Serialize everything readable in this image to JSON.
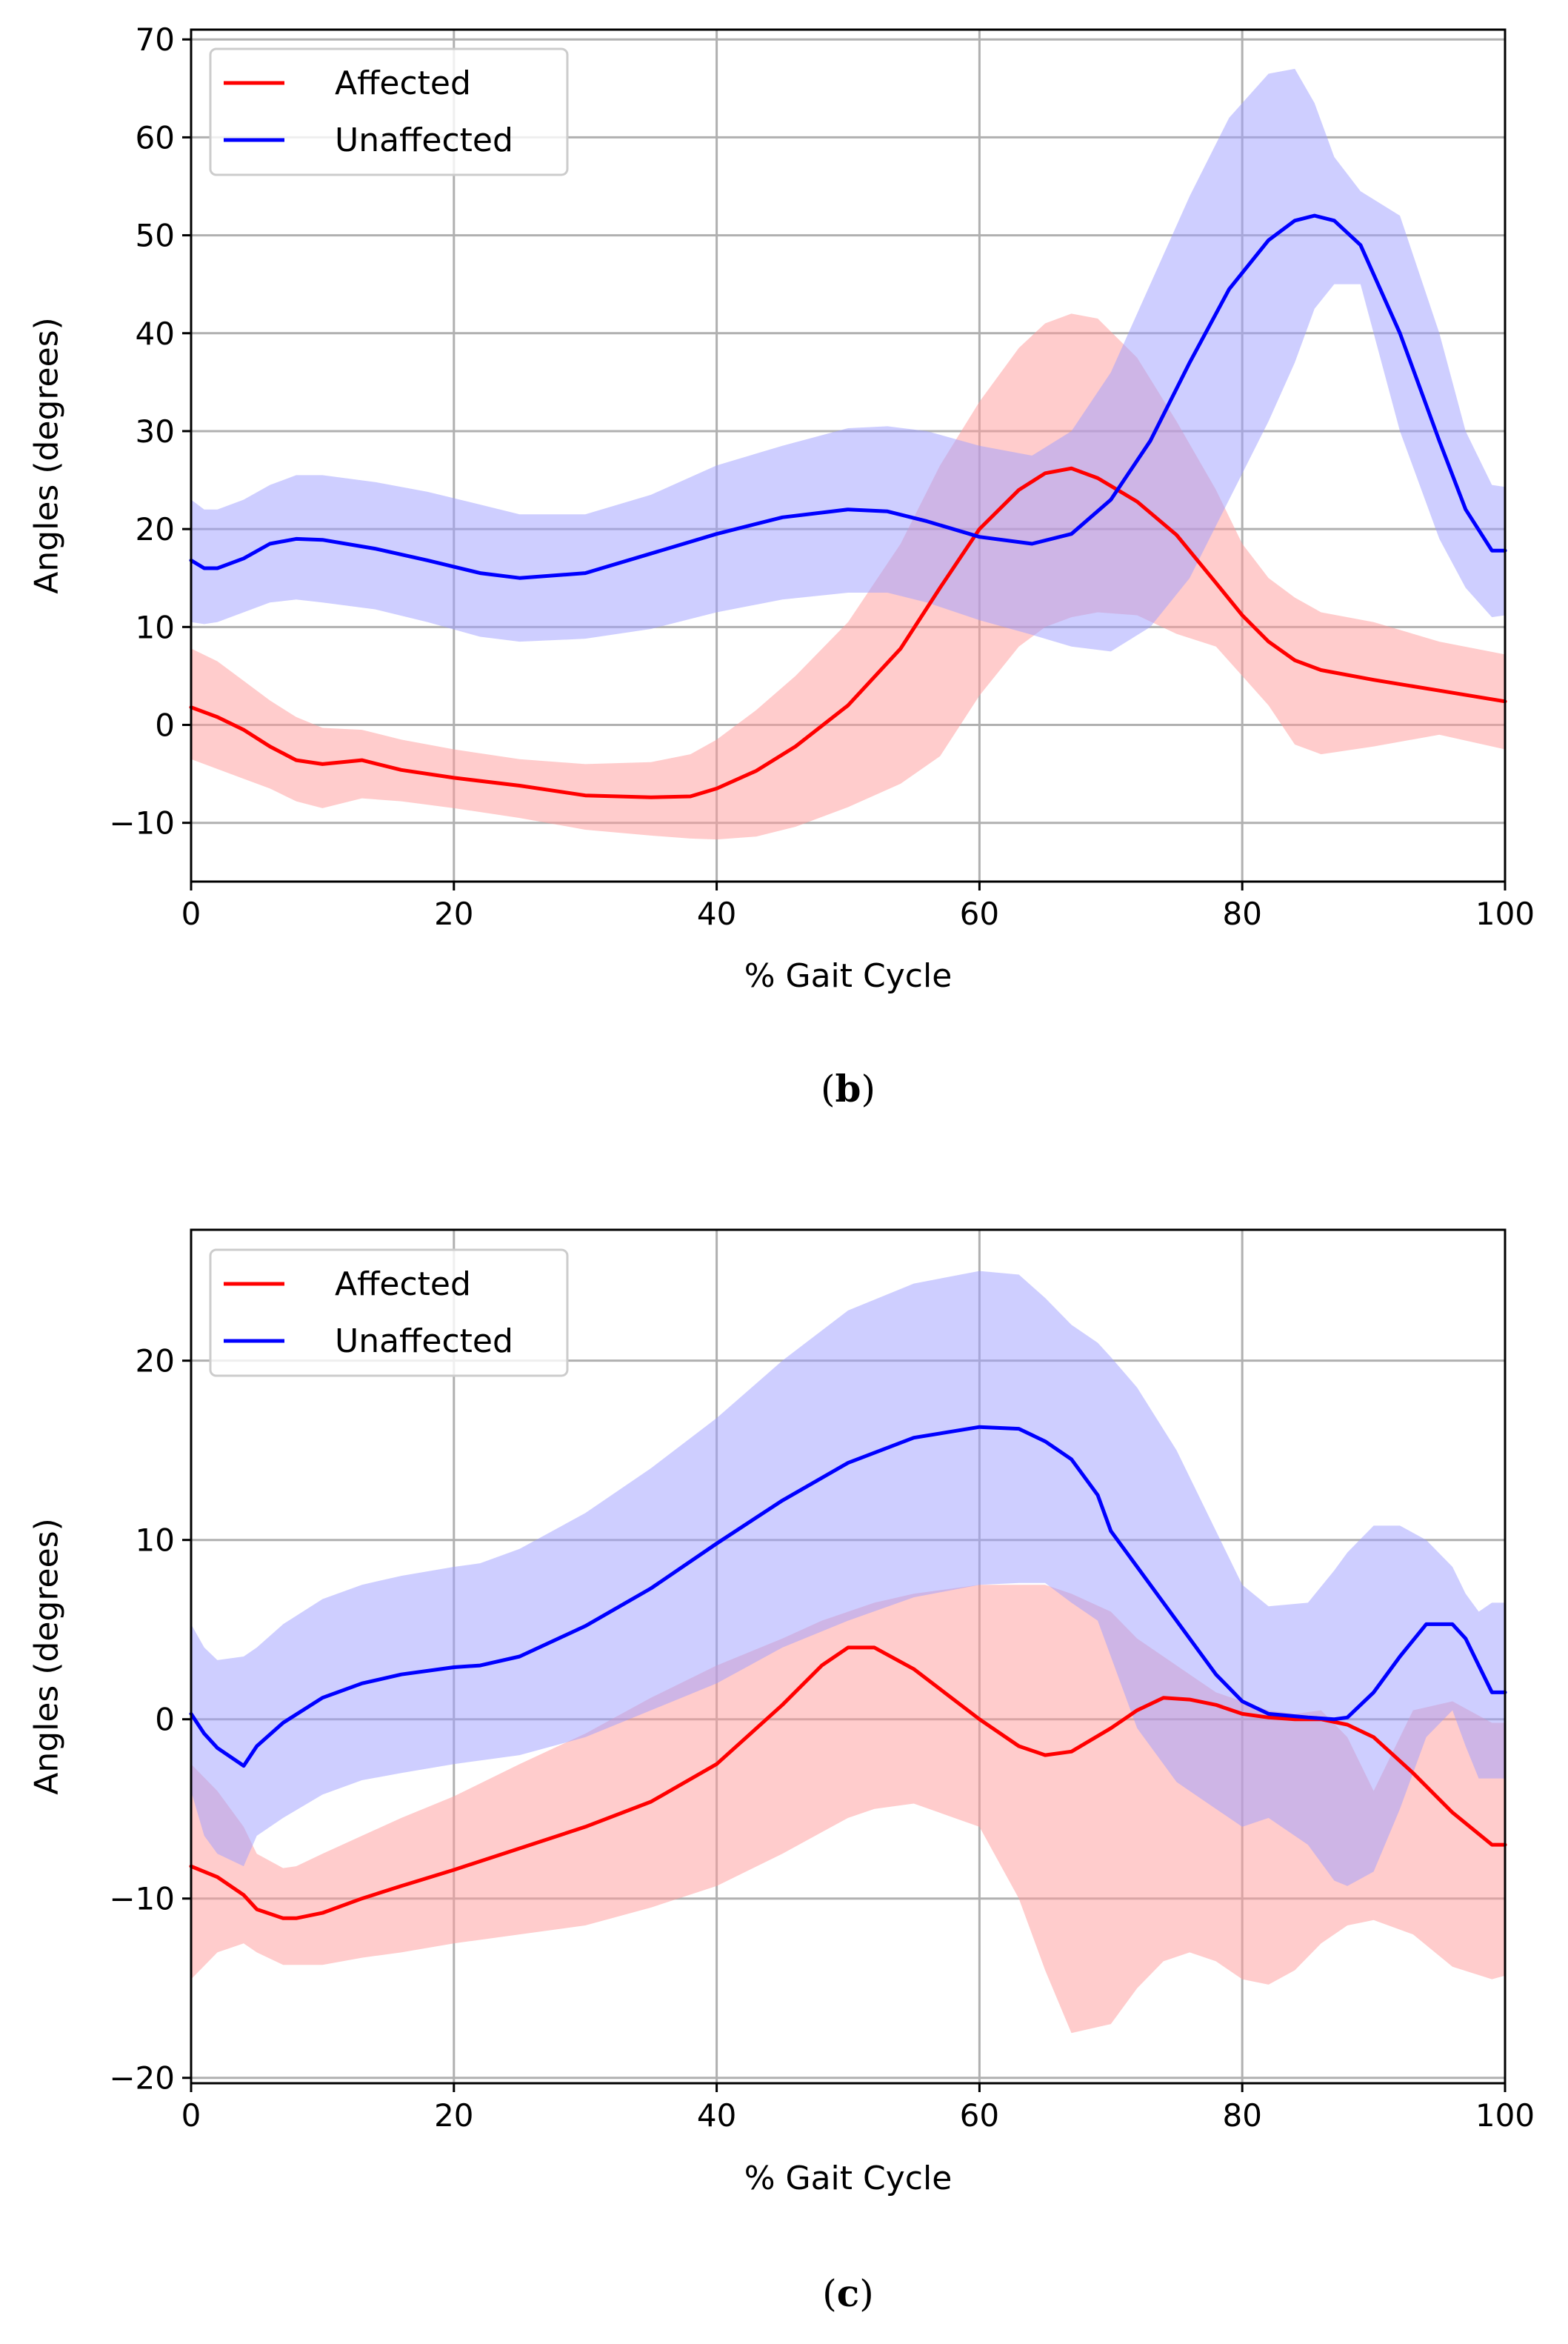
{
  "chart_data": [
    {
      "type": "line",
      "panel": "b",
      "caption": "b",
      "xlabel": "% Gait Cycle",
      "ylabel": "Angles (degrees)",
      "xlim": [
        0,
        100
      ],
      "ylim": [
        -16,
        71
      ],
      "xticks": [
        0,
        20,
        40,
        60,
        80,
        100
      ],
      "yticks": [
        -10,
        0,
        10,
        20,
        30,
        40,
        50,
        60,
        70
      ],
      "grid": true,
      "legend_position": "top-left",
      "series": [
        {
          "name": "Affected",
          "color": "#ff0000",
          "band_color": "#ff9a9a",
          "x": [
            0,
            2,
            4,
            6,
            8,
            10,
            13,
            16,
            20,
            25,
            30,
            35,
            38,
            40,
            43,
            46,
            50,
            54,
            57,
            60,
            63,
            65,
            67,
            69,
            72,
            75,
            78,
            80,
            82,
            84,
            86,
            90,
            95,
            100
          ],
          "mean": [
            1.8,
            0.8,
            -0.5,
            -2.2,
            -3.6,
            -4.0,
            -3.6,
            -4.6,
            -5.4,
            -6.2,
            -7.2,
            -7.4,
            -7.3,
            -6.5,
            -4.7,
            -2.2,
            2.0,
            7.8,
            14.0,
            20.0,
            24.0,
            25.7,
            26.2,
            25.2,
            22.8,
            19.4,
            14.5,
            11.2,
            8.5,
            6.6,
            5.6,
            4.6,
            3.5,
            2.4
          ],
          "upper": [
            7.8,
            6.5,
            4.5,
            2.5,
            0.8,
            -0.3,
            -0.5,
            -1.5,
            -2.5,
            -3.5,
            -4.0,
            -3.8,
            -3.0,
            -1.5,
            1.5,
            5.0,
            10.5,
            18.5,
            26.5,
            33.0,
            38.5,
            41.0,
            42.0,
            41.5,
            37.5,
            31.0,
            24.0,
            18.5,
            15.0,
            13.0,
            11.5,
            10.5,
            8.5,
            7.2
          ],
          "lower": [
            -3.5,
            -4.5,
            -5.5,
            -6.5,
            -7.8,
            -8.5,
            -7.5,
            -7.8,
            -8.5,
            -9.5,
            -10.7,
            -11.3,
            -11.6,
            -11.7,
            -11.4,
            -10.4,
            -8.4,
            -6.0,
            -3.2,
            3.0,
            8.0,
            10.0,
            11.0,
            11.5,
            11.2,
            9.3,
            8.0,
            5.0,
            2.0,
            -2.0,
            -3.0,
            -2.2,
            -1.0,
            -2.5
          ]
        },
        {
          "name": "Unaffected",
          "color": "#0000ff",
          "band_color": "#9e9eff",
          "x": [
            0,
            1,
            2,
            4,
            6,
            8,
            10,
            14,
            18,
            22,
            25,
            30,
            35,
            40,
            45,
            50,
            53,
            56,
            60,
            64,
            67,
            70,
            73,
            76,
            79,
            82,
            84,
            85.5,
            87,
            89,
            92,
            95,
            97,
            99,
            100
          ],
          "mean": [
            16.8,
            16.0,
            16.0,
            17.0,
            18.5,
            19.0,
            18.9,
            18.0,
            16.8,
            15.5,
            15.0,
            15.5,
            17.5,
            19.5,
            21.2,
            22.0,
            21.8,
            20.8,
            19.2,
            18.5,
            19.5,
            23.0,
            29.0,
            37.0,
            44.5,
            49.5,
            51.5,
            52.0,
            51.5,
            49.0,
            40.0,
            29.0,
            22.0,
            17.8,
            17.8
          ],
          "upper": [
            23.0,
            22.0,
            22.0,
            23.0,
            24.5,
            25.5,
            25.5,
            24.8,
            23.8,
            22.5,
            21.5,
            21.5,
            23.5,
            26.5,
            28.5,
            30.3,
            30.5,
            30.0,
            28.5,
            27.5,
            30.0,
            36.0,
            45.0,
            54.0,
            62.0,
            66.5,
            67.0,
            63.5,
            58.0,
            54.5,
            52.0,
            40.0,
            30.0,
            24.5,
            24.3
          ],
          "lower": [
            10.5,
            10.3,
            10.5,
            11.5,
            12.5,
            12.8,
            12.5,
            11.8,
            10.5,
            9.0,
            8.5,
            8.8,
            9.8,
            11.5,
            12.8,
            13.5,
            13.5,
            12.5,
            10.7,
            9.2,
            8.0,
            7.5,
            10.0,
            15.0,
            23.0,
            31.0,
            37.0,
            42.5,
            45.0,
            45.0,
            30.0,
            19.0,
            14.0,
            11.0,
            11.2
          ]
        }
      ]
    },
    {
      "type": "line",
      "panel": "c",
      "caption": "c",
      "xlabel": "% Gait Cycle",
      "ylabel": "Angles (degrees)",
      "xlim": [
        0,
        100
      ],
      "ylim": [
        -20.3,
        27.3
      ],
      "xticks": [
        0,
        20,
        40,
        60,
        80,
        100
      ],
      "yticks": [
        -20,
        -10,
        0,
        10,
        20
      ],
      "grid": true,
      "legend_position": "top-left",
      "series": [
        {
          "name": "Affected",
          "color": "#ff0000",
          "band_color": "#ff9a9a",
          "x": [
            0,
            2,
            4,
            5,
            7,
            8,
            10,
            13,
            16,
            20,
            25,
            30,
            35,
            40,
            45,
            48,
            50,
            52,
            55,
            60,
            63,
            65,
            67,
            70,
            72,
            74,
            76,
            78,
            80,
            82,
            84,
            86,
            88,
            90,
            93,
            96,
            99,
            100
          ],
          "mean": [
            -8.2,
            -8.8,
            -9.8,
            -10.6,
            -11.1,
            -11.1,
            -10.8,
            -10.0,
            -9.3,
            -8.4,
            -7.2,
            -6.0,
            -4.6,
            -2.5,
            0.8,
            3.0,
            4.0,
            4.0,
            2.8,
            0.0,
            -1.5,
            -2.0,
            -1.8,
            -0.5,
            0.5,
            1.2,
            1.1,
            0.8,
            0.3,
            0.1,
            0.0,
            0.0,
            -0.3,
            -1.0,
            -3.0,
            -5.2,
            -7.0,
            -7.0
          ],
          "upper": [
            -2.5,
            -4.0,
            -6.0,
            -7.5,
            -8.3,
            -8.2,
            -7.5,
            -6.5,
            -5.5,
            -4.3,
            -2.5,
            -0.8,
            1.2,
            3.0,
            4.5,
            5.5,
            6.0,
            6.5,
            7.0,
            7.5,
            7.5,
            7.5,
            7.0,
            6.0,
            4.5,
            3.5,
            2.5,
            1.5,
            1.0,
            0.5,
            0.3,
            0.5,
            -1.0,
            -4.0,
            0.5,
            1.0,
            -0.2,
            -0.2
          ],
          "lower": [
            -14.5,
            -13.0,
            -12.5,
            -13.0,
            -13.7,
            -13.7,
            -13.7,
            -13.3,
            -13.0,
            -12.5,
            -12.0,
            -11.5,
            -10.5,
            -9.3,
            -7.5,
            -6.3,
            -5.5,
            -5.0,
            -4.7,
            -6.0,
            -10.0,
            -14.0,
            -17.5,
            -17.0,
            -15.0,
            -13.5,
            -13.0,
            -13.5,
            -14.5,
            -14.8,
            -14.0,
            -12.5,
            -11.5,
            -11.2,
            -12.0,
            -13.8,
            -14.5,
            -14.3
          ]
        },
        {
          "name": "Unaffected",
          "color": "#0000ff",
          "band_color": "#9e9eff",
          "x": [
            0,
            1,
            2,
            4,
            5,
            7,
            10,
            13,
            16,
            20,
            22,
            25,
            30,
            35,
            40,
            45,
            50,
            55,
            60,
            63,
            65,
            67,
            69,
            70,
            72,
            75,
            78,
            80,
            82,
            85,
            87,
            88,
            90,
            92,
            94,
            96,
            97,
            98,
            99,
            100
          ],
          "mean": [
            0.3,
            -0.8,
            -1.6,
            -2.6,
            -1.5,
            -0.2,
            1.2,
            2.0,
            2.5,
            2.9,
            3.0,
            3.5,
            5.2,
            7.3,
            9.8,
            12.2,
            14.3,
            15.7,
            16.3,
            16.2,
            15.5,
            14.5,
            12.5,
            10.5,
            8.5,
            5.5,
            2.5,
            1.0,
            0.3,
            0.1,
            0.0,
            0.1,
            1.5,
            3.5,
            5.3,
            5.3,
            4.5,
            3.0,
            1.5,
            1.5
          ],
          "upper": [
            5.3,
            4.0,
            3.3,
            3.5,
            4.0,
            5.3,
            6.7,
            7.5,
            8.0,
            8.5,
            8.7,
            9.5,
            11.5,
            14.0,
            16.8,
            20.0,
            22.8,
            24.3,
            25.0,
            24.8,
            23.5,
            22.0,
            21.0,
            20.2,
            18.5,
            15.0,
            10.5,
            7.5,
            6.3,
            6.5,
            8.3,
            9.3,
            10.8,
            10.8,
            10.0,
            8.5,
            7.0,
            6.0,
            6.5,
            6.5
          ],
          "lower": [
            -4.0,
            -6.5,
            -7.5,
            -8.2,
            -6.5,
            -5.5,
            -4.2,
            -3.4,
            -3.0,
            -2.5,
            -2.3,
            -2.0,
            -1.0,
            0.5,
            2.0,
            4.0,
            5.5,
            6.8,
            7.5,
            7.6,
            7.6,
            6.5,
            5.5,
            3.5,
            -0.5,
            -3.5,
            -5.0,
            -6.0,
            -5.5,
            -7.0,
            -9.0,
            -9.3,
            -8.5,
            -5.0,
            -1.0,
            0.5,
            -1.5,
            -3.3,
            -3.3,
            -3.3
          ]
        }
      ]
    }
  ]
}
